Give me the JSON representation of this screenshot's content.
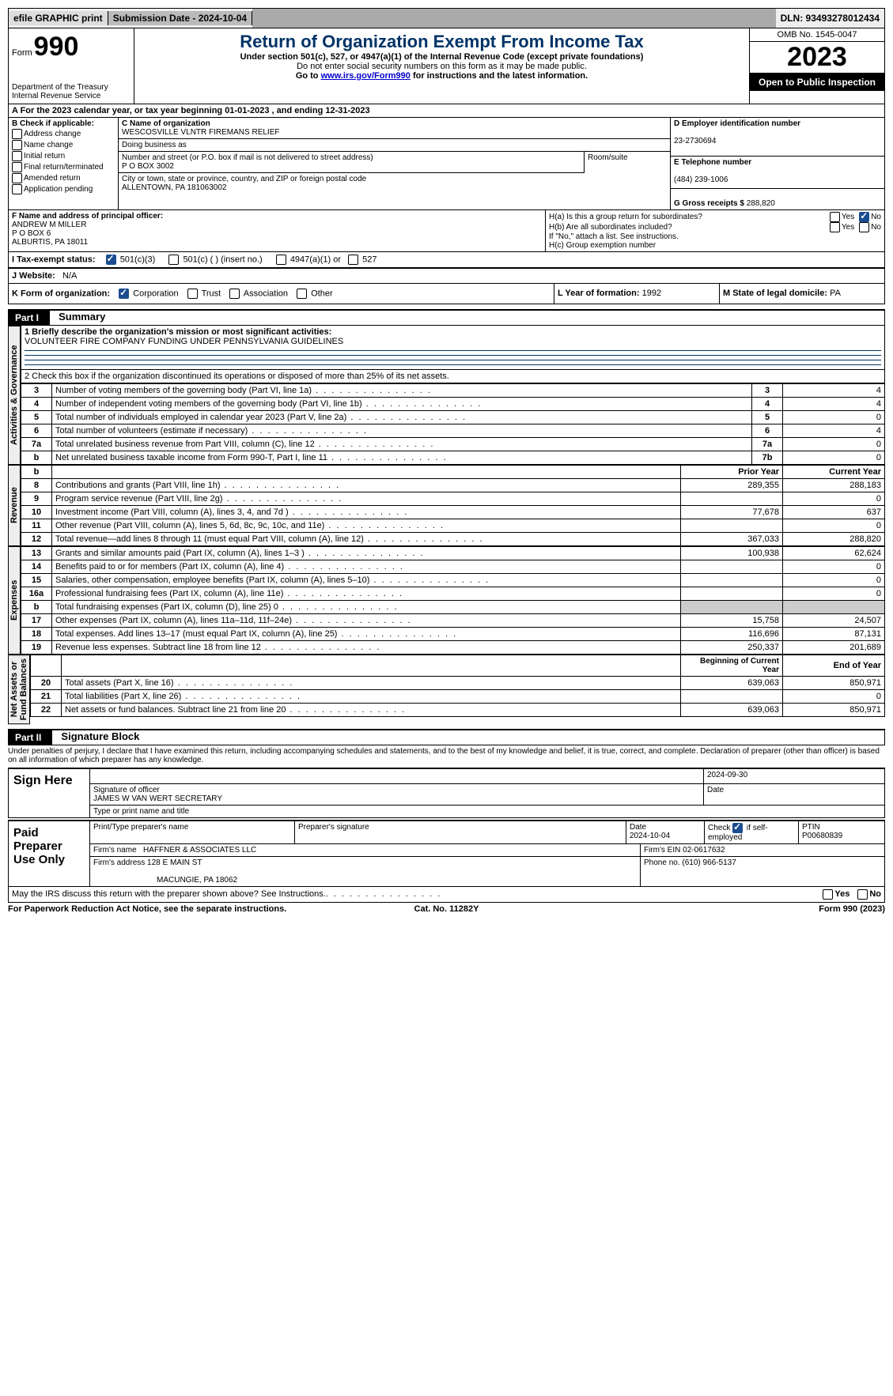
{
  "topbar": {
    "efile": "efile GRAPHIC print",
    "submission": "Submission Date - 2024-10-04",
    "dln": "DLN: 93493278012434"
  },
  "header": {
    "form_word": "Form",
    "form_num": "990",
    "dept": "Department of the Treasury\nInternal Revenue Service",
    "title": "Return of Organization Exempt From Income Tax",
    "sub1": "Under section 501(c), 527, or 4947(a)(1) of the Internal Revenue Code (except private foundations)",
    "sub2": "Do not enter social security numbers on this form as it may be made public.",
    "sub3_pre": "Go to ",
    "sub3_link": "www.irs.gov/Form990",
    "sub3_post": " for instructions and the latest information.",
    "omb": "OMB No. 1545-0047",
    "year": "2023",
    "inspection": "Open to Public Inspection"
  },
  "rowA": "A For the 2023 calendar year, or tax year beginning 01-01-2023   , and ending 12-31-2023",
  "boxB": {
    "label": "B Check if applicable:",
    "items": [
      "Address change",
      "Name change",
      "Initial return",
      "Final return/terminated",
      "Amended return",
      "Application pending"
    ]
  },
  "boxC": {
    "label_name": "C Name of organization",
    "org_name": "WESCOSVILLE VLNTR FIREMANS RELIEF",
    "dba_label": "Doing business as",
    "dba": "",
    "street_label": "Number and street (or P.O. box if mail is not delivered to street address)",
    "room_label": "Room/suite",
    "street": "P O BOX 3002",
    "city_label": "City or town, state or province, country, and ZIP or foreign postal code",
    "city": "ALLENTOWN, PA  181063002"
  },
  "boxD": {
    "label": "D Employer identification number",
    "value": "23-2730694"
  },
  "boxE": {
    "label": "E Telephone number",
    "value": "(484) 239-1006"
  },
  "boxG": {
    "label": "G Gross receipts $",
    "value": "288,820"
  },
  "boxF": {
    "label": "F  Name and address of principal officer:",
    "line1": "ANDREW M MILLER",
    "line2": "P O BOX 6",
    "line3": "ALBURTIS, PA  18011"
  },
  "boxH": {
    "ha": "H(a)  Is this a group return for subordinates?",
    "hb": "H(b)  Are all subordinates included?",
    "hb_note": "If \"No,\" attach a list. See instructions.",
    "hc": "H(c)  Group exemption number",
    "yes": "Yes",
    "no": "No"
  },
  "taxexempt": {
    "label": "I  Tax-exempt status:",
    "o1": "501(c)(3)",
    "o2": "501(c) (  ) (insert no.)",
    "o3": "4947(a)(1) or",
    "o4": "527"
  },
  "website": {
    "label": "J  Website:",
    "value": "N/A"
  },
  "formorg": {
    "label": "K Form of organization:",
    "o1": "Corporation",
    "o2": "Trust",
    "o3": "Association",
    "o4": "Other"
  },
  "yearform": {
    "label": "L Year of formation:",
    "value": "1992"
  },
  "domicile": {
    "label": "M State of legal domicile:",
    "value": "PA"
  },
  "part1": {
    "tag": "Part I",
    "title": "Summary"
  },
  "mission": {
    "prompt": "1  Briefly describe the organization's mission or most significant activities:",
    "text": "VOLUNTEER FIRE COMPANY FUNDING UNDER PENNSYLVANIA GUIDELINES"
  },
  "line2": "2   Check this box      if the organization discontinued its operations or disposed of more than 25% of its net assets.",
  "sideLabels": {
    "actgov": "Activities & Governance",
    "revenue": "Revenue",
    "expenses": "Expenses",
    "netassets": "Net Assets or\nFund Balances"
  },
  "gov_rows": [
    {
      "n": "3",
      "d": "Number of voting members of the governing body (Part VI, line 1a)",
      "lbl": "3",
      "v": "4"
    },
    {
      "n": "4",
      "d": "Number of independent voting members of the governing body (Part VI, line 1b)",
      "lbl": "4",
      "v": "4"
    },
    {
      "n": "5",
      "d": "Total number of individuals employed in calendar year 2023 (Part V, line 2a)",
      "lbl": "5",
      "v": "0"
    },
    {
      "n": "6",
      "d": "Total number of volunteers (estimate if necessary)",
      "lbl": "6",
      "v": "4"
    },
    {
      "n": "7a",
      "d": "Total unrelated business revenue from Part VIII, column (C), line 12",
      "lbl": "7a",
      "v": "0"
    },
    {
      "n": "b",
      "d": "Net unrelated business taxable income from Form 990-T, Part I, line 11",
      "lbl": "7b",
      "v": "0"
    }
  ],
  "col_headers": {
    "prior": "Prior Year",
    "current": "Current Year",
    "begin": "Beginning of Current Year",
    "end": "End of Year"
  },
  "rev_rows": [
    {
      "n": "8",
      "d": "Contributions and grants (Part VIII, line 1h)",
      "p": "289,355",
      "c": "288,183"
    },
    {
      "n": "9",
      "d": "Program service revenue (Part VIII, line 2g)",
      "p": "",
      "c": "0"
    },
    {
      "n": "10",
      "d": "Investment income (Part VIII, column (A), lines 3, 4, and 7d )",
      "p": "77,678",
      "c": "637"
    },
    {
      "n": "11",
      "d": "Other revenue (Part VIII, column (A), lines 5, 6d, 8c, 9c, 10c, and 11e)",
      "p": "",
      "c": "0"
    },
    {
      "n": "12",
      "d": "Total revenue—add lines 8 through 11 (must equal Part VIII, column (A), line 12)",
      "p": "367,033",
      "c": "288,820"
    }
  ],
  "exp_rows": [
    {
      "n": "13",
      "d": "Grants and similar amounts paid (Part IX, column (A), lines 1–3 )",
      "p": "100,938",
      "c": "62,624"
    },
    {
      "n": "14",
      "d": "Benefits paid to or for members (Part IX, column (A), line 4)",
      "p": "",
      "c": "0"
    },
    {
      "n": "15",
      "d": "Salaries, other compensation, employee benefits (Part IX, column (A), lines 5–10)",
      "p": "",
      "c": "0"
    },
    {
      "n": "16a",
      "d": "Professional fundraising fees (Part IX, column (A), line 11e)",
      "p": "",
      "c": "0"
    },
    {
      "n": "b",
      "d": "Total fundraising expenses (Part IX, column (D), line 25) 0",
      "p": "SHADE",
      "c": "SHADE"
    },
    {
      "n": "17",
      "d": "Other expenses (Part IX, column (A), lines 11a–11d, 11f–24e)",
      "p": "15,758",
      "c": "24,507"
    },
    {
      "n": "18",
      "d": "Total expenses. Add lines 13–17 (must equal Part IX, column (A), line 25)",
      "p": "116,696",
      "c": "87,131"
    },
    {
      "n": "19",
      "d": "Revenue less expenses. Subtract line 18 from line 12",
      "p": "250,337",
      "c": "201,689"
    }
  ],
  "na_rows": [
    {
      "n": "20",
      "d": "Total assets (Part X, line 16)",
      "p": "639,063",
      "c": "850,971"
    },
    {
      "n": "21",
      "d": "Total liabilities (Part X, line 26)",
      "p": "",
      "c": "0"
    },
    {
      "n": "22",
      "d": "Net assets or fund balances. Subtract line 21 from line 20",
      "p": "639,063",
      "c": "850,971"
    }
  ],
  "part2": {
    "tag": "Part II",
    "title": "Signature Block"
  },
  "perjury": "Under penalties of perjury, I declare that I have examined this return, including accompanying schedules and statements, and to the best of my knowledge and belief, it is true, correct, and complete. Declaration of preparer (other than officer) is based on all information of which preparer has any knowledge.",
  "sign": {
    "here": "Sign Here",
    "date": "2024-09-30",
    "sig_label": "Signature of officer",
    "officer": "JAMES W VAN WERT SECRETARY",
    "type_label": "Type or print name and title",
    "date_label": "Date"
  },
  "preparer": {
    "label": "Paid Preparer Use Only",
    "print_label": "Print/Type preparer's name",
    "sig_label": "Preparer's signature",
    "date_label": "Date",
    "date": "2024-10-04",
    "check_label": "Check",
    "self": "if self-employed",
    "ptin_label": "PTIN",
    "ptin": "P00680839",
    "firm_name_label": "Firm's name",
    "firm_name": "HAFFNER & ASSOCIATES LLC",
    "firm_ein_label": "Firm's EIN",
    "firm_ein": "02-0617632",
    "firm_addr_label": "Firm's address",
    "firm_addr1": "128 E MAIN ST",
    "firm_addr2": "MACUNGIE, PA  18062",
    "phone_label": "Phone no.",
    "phone": "(610) 966-5137"
  },
  "discuss": "May the IRS discuss this return with the preparer shown above? See Instructions.",
  "footer": {
    "left": "For Paperwork Reduction Act Notice, see the separate instructions.",
    "mid": "Cat. No. 11282Y",
    "right": "Form 990 (2023)"
  }
}
